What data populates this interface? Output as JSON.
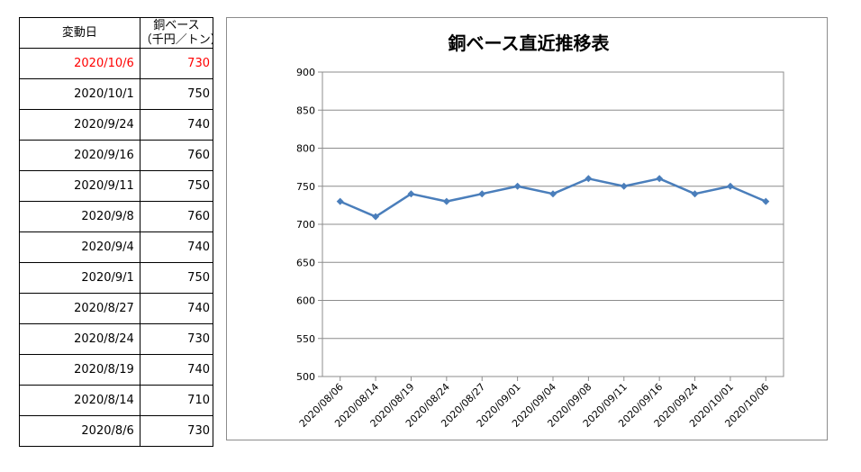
{
  "table": {
    "header": {
      "date": "変動日",
      "price_line1": "銅ベース",
      "price_line2": "（千円／トン）"
    },
    "rows": [
      {
        "date": "2020/10/6",
        "price": "730",
        "highlight": true
      },
      {
        "date": "2020/10/1",
        "price": "750",
        "highlight": false
      },
      {
        "date": "2020/9/24",
        "price": "740",
        "highlight": false
      },
      {
        "date": "2020/9/16",
        "price": "760",
        "highlight": false
      },
      {
        "date": "2020/9/11",
        "price": "750",
        "highlight": false
      },
      {
        "date": "2020/9/8",
        "price": "760",
        "highlight": false
      },
      {
        "date": "2020/9/4",
        "price": "740",
        "highlight": false
      },
      {
        "date": "2020/9/1",
        "price": "750",
        "highlight": false
      },
      {
        "date": "2020/8/27",
        "price": "740",
        "highlight": false
      },
      {
        "date": "2020/8/24",
        "price": "730",
        "highlight": false
      },
      {
        "date": "2020/8/19",
        "price": "740",
        "highlight": false
      },
      {
        "date": "2020/8/14",
        "price": "710",
        "highlight": false
      },
      {
        "date": "2020/8/6",
        "price": "730",
        "highlight": false
      }
    ],
    "highlight_color": "#ff0000"
  },
  "chart_data": {
    "type": "line",
    "title": "銅ベース直近推移表",
    "xlabel": "",
    "ylabel": "",
    "categories": [
      "2020/08/06",
      "2020/08/14",
      "2020/08/19",
      "2020/08/24",
      "2020/08/27",
      "2020/09/01",
      "2020/09/04",
      "2020/09/08",
      "2020/09/11",
      "2020/09/16",
      "2020/09/24",
      "2020/10/01",
      "2020/10/06"
    ],
    "series": [
      {
        "values": [
          730,
          710,
          740,
          730,
          740,
          750,
          740,
          760,
          750,
          760,
          740,
          750,
          730
        ],
        "color": "#4a7ebb",
        "marker": "diamond"
      }
    ],
    "ylim": [
      500,
      900
    ],
    "yticks": [
      500,
      550,
      600,
      650,
      700,
      750,
      800,
      850,
      900
    ],
    "grid": true,
    "legend": "none"
  }
}
